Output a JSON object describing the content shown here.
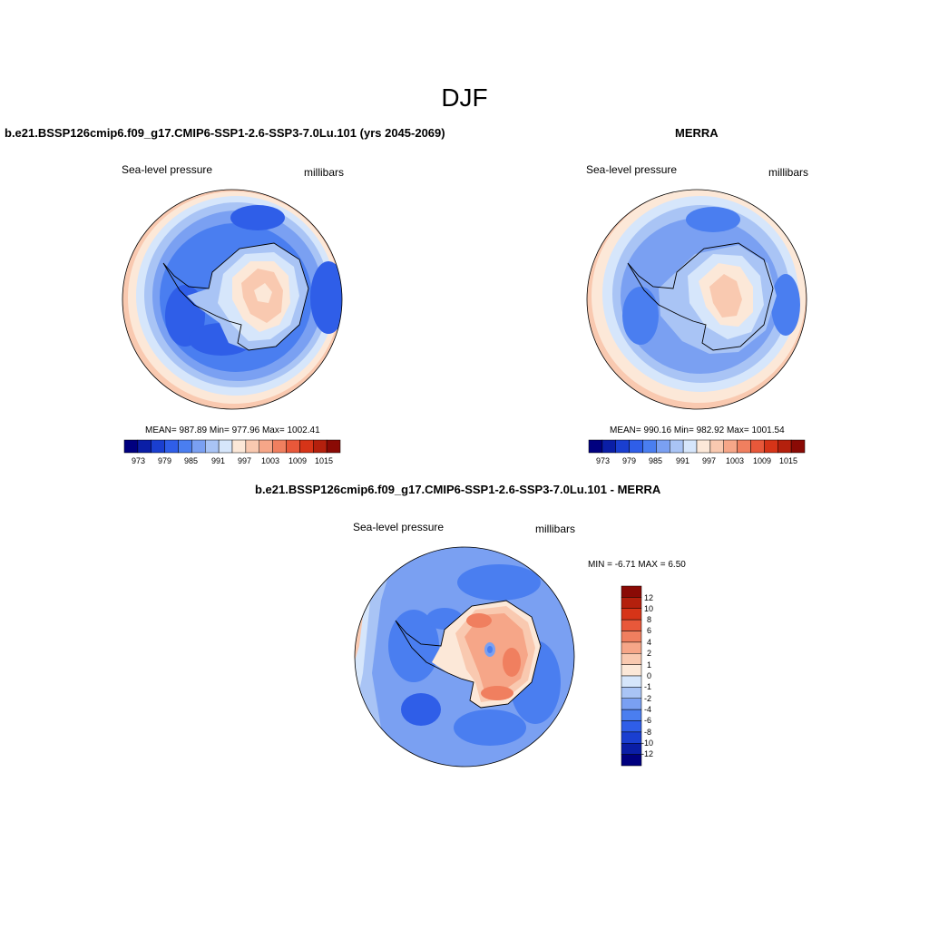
{
  "figure": {
    "title": "DJF"
  },
  "chart_data": [
    {
      "type": "heatmap",
      "title": "b.e21.BSSP126cmip6.f09_g17.CMIP6-SSP1-2.6-SSP3-7.0Lu.101 (yrs 2045-2069)",
      "left_label": "Sea-level pressure",
      "right_label": "millibars",
      "stats": {
        "mean": "987.89",
        "min": "977.96",
        "max": "1002.41"
      },
      "stats_text": "MEAN= 987.89  Min= 977.96  Max= 1002.41",
      "colorbar": {
        "ticks": [
          "973",
          "979",
          "985",
          "991",
          "997",
          "1003",
          "1009",
          "1015"
        ],
        "colors": [
          "#00007f",
          "#0a1ea6",
          "#1a3fd0",
          "#2f5ee8",
          "#4a7ef0",
          "#7aa0f2",
          "#a9c4f5",
          "#d6e6fb",
          "#fce8d8",
          "#f9c9b0",
          "#f6a688",
          "#f07f5f",
          "#e8583a",
          "#d63418",
          "#b4200d",
          "#8a0a05"
        ]
      }
    },
    {
      "type": "heatmap",
      "title": "MERRA",
      "left_label": "Sea-level pressure",
      "right_label": "millibars",
      "stats": {
        "mean": "990.16",
        "min": "982.92",
        "max": "1001.54"
      },
      "stats_text": "MEAN= 990.16  Min= 982.92  Max= 1001.54",
      "colorbar": {
        "ticks": [
          "973",
          "979",
          "985",
          "991",
          "997",
          "1003",
          "1009",
          "1015"
        ],
        "colors": [
          "#00007f",
          "#0a1ea6",
          "#1a3fd0",
          "#2f5ee8",
          "#4a7ef0",
          "#7aa0f2",
          "#a9c4f5",
          "#d6e6fb",
          "#fce8d8",
          "#f9c9b0",
          "#f6a688",
          "#f07f5f",
          "#e8583a",
          "#d63418",
          "#b4200d",
          "#8a0a05"
        ]
      }
    },
    {
      "type": "heatmap",
      "title": "b.e21.BSSP126cmip6.f09_g17.CMIP6-SSP1-2.6-SSP3-7.0Lu.101 - MERRA",
      "left_label": "Sea-level pressure",
      "right_label": "millibars",
      "stats": {
        "min": "-6.71",
        "max": "6.50"
      },
      "stats_text": "MIN =  -6.71 MAX =   6.50",
      "colorbar": {
        "ticks": [
          "12",
          "10",
          "8",
          "6",
          "4",
          "2",
          "1",
          "0",
          "-1",
          "-2",
          "-4",
          "-6",
          "-8",
          "-10",
          "-12"
        ],
        "colors": [
          "#8a0a05",
          "#b4200d",
          "#d63418",
          "#e8583a",
          "#f07f5f",
          "#f6a688",
          "#f9c9b0",
          "#fce8d8",
          "#d6e6fb",
          "#a9c4f5",
          "#7aa0f2",
          "#4a7ef0",
          "#2f5ee8",
          "#1a3fd0",
          "#0a1ea6",
          "#00007f"
        ]
      }
    }
  ]
}
